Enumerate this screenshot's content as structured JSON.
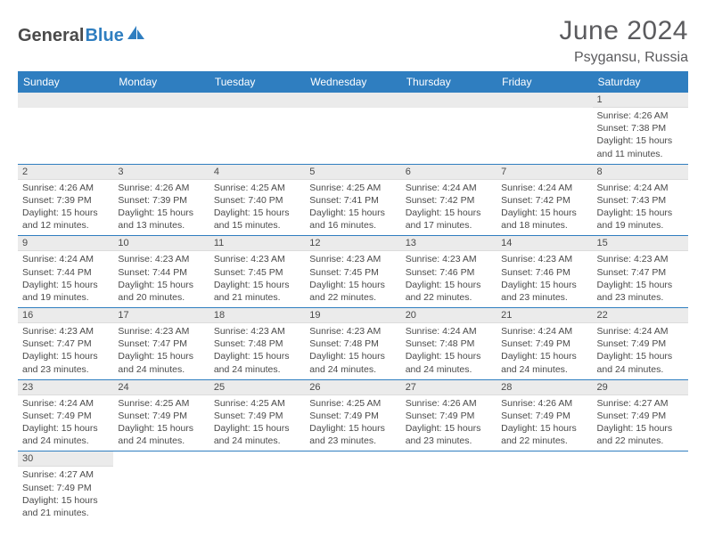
{
  "logo": {
    "text1": "General",
    "text2": "Blue"
  },
  "title": "June 2024",
  "subtitle": "Psygansu, Russia",
  "header_bg": "#2f7ec0",
  "day_headers": [
    "Sunday",
    "Monday",
    "Tuesday",
    "Wednesday",
    "Thursday",
    "Friday",
    "Saturday"
  ],
  "first_weekday": 6,
  "days": [
    {
      "n": 1,
      "sr": "4:26 AM",
      "ss": "7:38 PM",
      "dl": "15 hours and 11 minutes."
    },
    {
      "n": 2,
      "sr": "4:26 AM",
      "ss": "7:39 PM",
      "dl": "15 hours and 12 minutes."
    },
    {
      "n": 3,
      "sr": "4:26 AM",
      "ss": "7:39 PM",
      "dl": "15 hours and 13 minutes."
    },
    {
      "n": 4,
      "sr": "4:25 AM",
      "ss": "7:40 PM",
      "dl": "15 hours and 15 minutes."
    },
    {
      "n": 5,
      "sr": "4:25 AM",
      "ss": "7:41 PM",
      "dl": "15 hours and 16 minutes."
    },
    {
      "n": 6,
      "sr": "4:24 AM",
      "ss": "7:42 PM",
      "dl": "15 hours and 17 minutes."
    },
    {
      "n": 7,
      "sr": "4:24 AM",
      "ss": "7:42 PM",
      "dl": "15 hours and 18 minutes."
    },
    {
      "n": 8,
      "sr": "4:24 AM",
      "ss": "7:43 PM",
      "dl": "15 hours and 19 minutes."
    },
    {
      "n": 9,
      "sr": "4:24 AM",
      "ss": "7:44 PM",
      "dl": "15 hours and 19 minutes."
    },
    {
      "n": 10,
      "sr": "4:23 AM",
      "ss": "7:44 PM",
      "dl": "15 hours and 20 minutes."
    },
    {
      "n": 11,
      "sr": "4:23 AM",
      "ss": "7:45 PM",
      "dl": "15 hours and 21 minutes."
    },
    {
      "n": 12,
      "sr": "4:23 AM",
      "ss": "7:45 PM",
      "dl": "15 hours and 22 minutes."
    },
    {
      "n": 13,
      "sr": "4:23 AM",
      "ss": "7:46 PM",
      "dl": "15 hours and 22 minutes."
    },
    {
      "n": 14,
      "sr": "4:23 AM",
      "ss": "7:46 PM",
      "dl": "15 hours and 23 minutes."
    },
    {
      "n": 15,
      "sr": "4:23 AM",
      "ss": "7:47 PM",
      "dl": "15 hours and 23 minutes."
    },
    {
      "n": 16,
      "sr": "4:23 AM",
      "ss": "7:47 PM",
      "dl": "15 hours and 23 minutes."
    },
    {
      "n": 17,
      "sr": "4:23 AM",
      "ss": "7:47 PM",
      "dl": "15 hours and 24 minutes."
    },
    {
      "n": 18,
      "sr": "4:23 AM",
      "ss": "7:48 PM",
      "dl": "15 hours and 24 minutes."
    },
    {
      "n": 19,
      "sr": "4:23 AM",
      "ss": "7:48 PM",
      "dl": "15 hours and 24 minutes."
    },
    {
      "n": 20,
      "sr": "4:24 AM",
      "ss": "7:48 PM",
      "dl": "15 hours and 24 minutes."
    },
    {
      "n": 21,
      "sr": "4:24 AM",
      "ss": "7:49 PM",
      "dl": "15 hours and 24 minutes."
    },
    {
      "n": 22,
      "sr": "4:24 AM",
      "ss": "7:49 PM",
      "dl": "15 hours and 24 minutes."
    },
    {
      "n": 23,
      "sr": "4:24 AM",
      "ss": "7:49 PM",
      "dl": "15 hours and 24 minutes."
    },
    {
      "n": 24,
      "sr": "4:25 AM",
      "ss": "7:49 PM",
      "dl": "15 hours and 24 minutes."
    },
    {
      "n": 25,
      "sr": "4:25 AM",
      "ss": "7:49 PM",
      "dl": "15 hours and 24 minutes."
    },
    {
      "n": 26,
      "sr": "4:25 AM",
      "ss": "7:49 PM",
      "dl": "15 hours and 23 minutes."
    },
    {
      "n": 27,
      "sr": "4:26 AM",
      "ss": "7:49 PM",
      "dl": "15 hours and 23 minutes."
    },
    {
      "n": 28,
      "sr": "4:26 AM",
      "ss": "7:49 PM",
      "dl": "15 hours and 22 minutes."
    },
    {
      "n": 29,
      "sr": "4:27 AM",
      "ss": "7:49 PM",
      "dl": "15 hours and 22 minutes."
    },
    {
      "n": 30,
      "sr": "4:27 AM",
      "ss": "7:49 PM",
      "dl": "15 hours and 21 minutes."
    }
  ],
  "labels": {
    "sunrise": "Sunrise:",
    "sunset": "Sunset:",
    "daylight": "Daylight:"
  }
}
